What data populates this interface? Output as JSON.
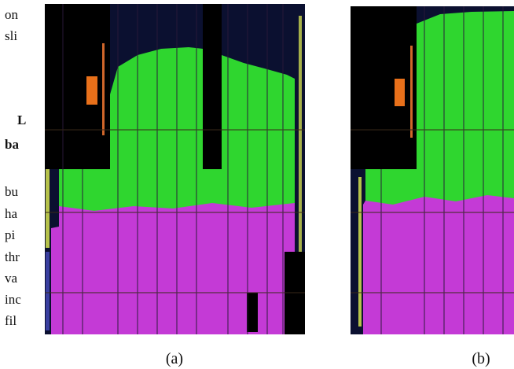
{
  "left_text": [
    {
      "text": "on",
      "bold": false
    },
    {
      "text": "sli",
      "bold": false
    },
    {
      "text": "L",
      "bold": true
    },
    {
      "text": "ba",
      "bold": true
    },
    {
      "text": "bu",
      "bold": false
    },
    {
      "text": "ha",
      "bold": false
    },
    {
      "text": "pi",
      "bold": false
    },
    {
      "text": "thr",
      "bold": false
    },
    {
      "text": "va",
      "bold": false
    },
    {
      "text": "inc",
      "bold": false
    },
    {
      "text": "fil",
      "bold": false
    }
  ],
  "figures": [
    {
      "caption": "(a)"
    },
    {
      "caption": "(b)"
    }
  ]
}
